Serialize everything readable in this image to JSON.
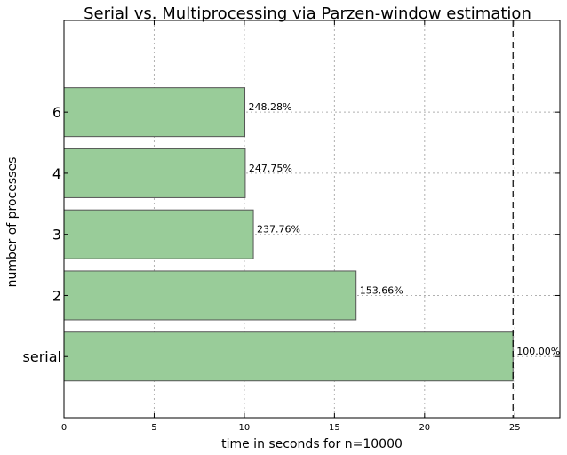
{
  "chart_data": {
    "type": "bar",
    "orientation": "horizontal",
    "title": "Serial vs. Multiprocessing via Parzen-window estimation",
    "xlabel": "time in seconds for n=10000",
    "ylabel": "number of processes",
    "categories": [
      "serial",
      "2",
      "3",
      "4",
      "6"
    ],
    "values": [
      24.9,
      16.2,
      10.5,
      10.05,
      10.03
    ],
    "bar_labels": [
      "100.00%",
      "153.66%",
      "237.76%",
      "247.75%",
      "248.28%"
    ],
    "xlim": [
      0,
      27.5
    ],
    "xticks": [
      "0",
      "5",
      "10",
      "15",
      "20",
      "25"
    ],
    "reference_line_x": 24.9,
    "grid": true,
    "bar_color": "#99cc99",
    "bar_edge_color": "#555555"
  }
}
